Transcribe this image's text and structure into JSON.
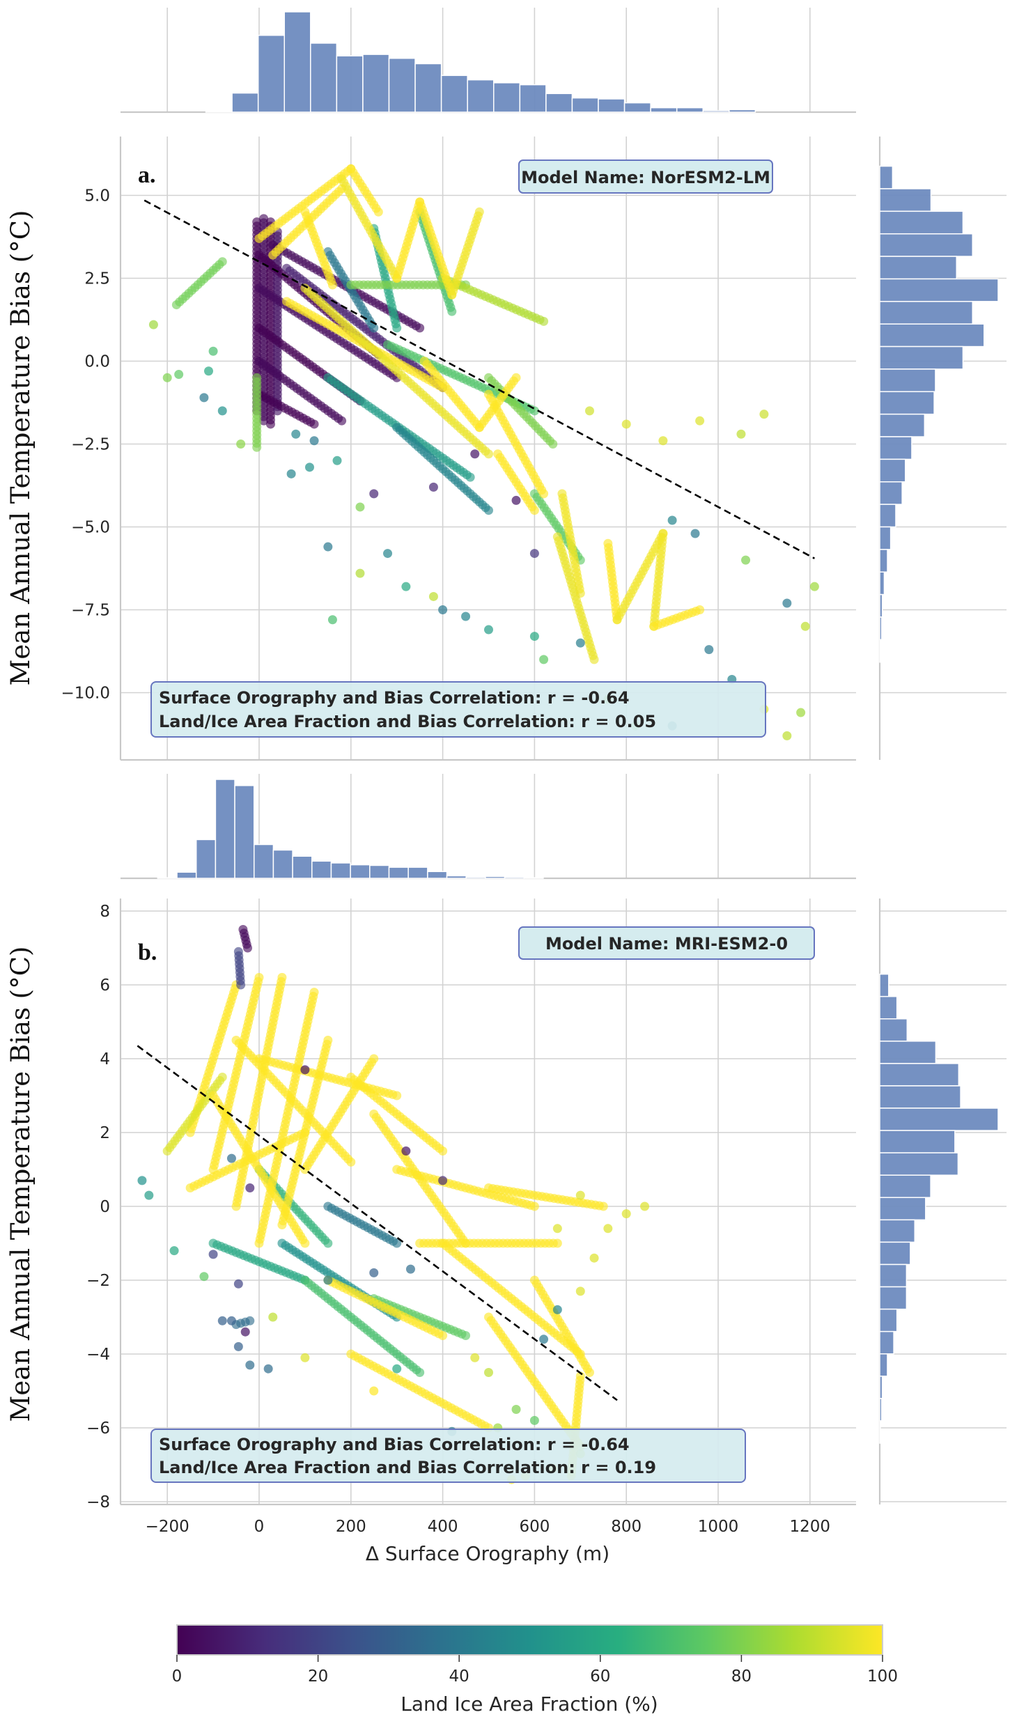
{
  "chart_data": [
    {
      "type": "scatter",
      "panel_label": "a.",
      "model_label": "Model Name: NorESM2-LM",
      "annotation_lines": [
        "Surface Orography and Bias Correlation: r = -0.64",
        "Land/Ice Area Fraction and Bias Correlation: r = 0.05"
      ],
      "ylabel": "Mean Annual Temperature Bias (°C)",
      "xlim": [
        -300,
        1300
      ],
      "ylim": [
        -12.2,
        6.4
      ],
      "x_ticks": [
        -200,
        0,
        200,
        400,
        600,
        800,
        1000,
        1200
      ],
      "y_ticks": [
        5.0,
        2.5,
        0.0,
        -2.5,
        -5.0,
        -7.5,
        -10.0
      ],
      "y_tick_labels": [
        "5.0",
        "2.5",
        "0.0",
        "−2.5",
        "−5.0",
        "−7.5",
        "−10.0"
      ],
      "grid": true,
      "regression_line": [
        [
          -250,
          4.85
        ],
        [
          1210,
          -5.95
        ]
      ],
      "tracks": [
        [
          -5,
          4.2,
          -5,
          -1.5,
          0
        ],
        [
          10,
          4.3,
          10,
          -1.8,
          2
        ],
        [
          25,
          4.2,
          25,
          -1.9,
          0
        ],
        [
          40,
          3.9,
          40,
          -1.5,
          5
        ],
        [
          0,
          3.2,
          260,
          0.2,
          0
        ],
        [
          0,
          2.2,
          300,
          -0.5,
          3
        ],
        [
          0,
          1.0,
          220,
          -1.2,
          0
        ],
        [
          0,
          0,
          180,
          -1.8,
          2
        ],
        [
          0,
          -1,
          120,
          -1.9,
          0
        ],
        [
          30,
          3.5,
          350,
          1,
          2
        ],
        [
          60,
          2.8,
          400,
          -0.8,
          8
        ],
        [
          -5,
          -0.5,
          -5,
          -2.6,
          80
        ],
        [
          -180,
          1.7,
          -80,
          3,
          78
        ],
        [
          150,
          3.3,
          250,
          1,
          40
        ],
        [
          250,
          4,
          300,
          1,
          60
        ],
        [
          350,
          4.5,
          420,
          1.5,
          70
        ],
        [
          200,
          2.3,
          450,
          2.3,
          80
        ],
        [
          400,
          2.5,
          620,
          1.2,
          88
        ],
        [
          280,
          0.5,
          600,
          -1.5,
          72
        ],
        [
          150,
          -0.5,
          460,
          -3.5,
          55
        ],
        [
          300,
          -2,
          500,
          -4.5,
          45
        ],
        [
          500,
          -0.5,
          640,
          -2.5,
          80
        ],
        [
          600,
          -4,
          700,
          -6,
          75
        ],
        [
          0,
          3.7,
          200,
          5.8,
          100
        ],
        [
          200,
          5.8,
          260,
          4.5,
          100
        ],
        [
          30,
          3.2,
          180,
          5.2,
          100
        ],
        [
          100,
          4.5,
          160,
          2.3,
          100
        ],
        [
          180,
          5.5,
          300,
          2.5,
          98
        ],
        [
          300,
          2.5,
          350,
          4.8,
          100
        ],
        [
          350,
          4.8,
          420,
          2,
          100
        ],
        [
          420,
          2,
          480,
          4.5,
          98
        ],
        [
          60,
          1.8,
          400,
          -0.8,
          100
        ],
        [
          100,
          2.2,
          500,
          -2.8,
          97
        ],
        [
          360,
          0,
          480,
          -2,
          100
        ],
        [
          480,
          -2,
          560,
          -0.5,
          100
        ],
        [
          500,
          -1,
          620,
          -4,
          100
        ],
        [
          520,
          -2.8,
          600,
          -4.5,
          100
        ],
        [
          760,
          -5.5,
          780,
          -7.8,
          100
        ],
        [
          780,
          -7.8,
          880,
          -5.2,
          98
        ],
        [
          880,
          -5.2,
          860,
          -8,
          98
        ],
        [
          860,
          -8,
          960,
          -7.5,
          100
        ],
        [
          660,
          -4,
          700,
          -7,
          98
        ],
        [
          650,
          -5.3,
          730,
          -9,
          97
        ]
      ],
      "points": [
        [
          -230,
          1.1,
          85
        ],
        [
          -200,
          -0.5,
          80
        ],
        [
          -175,
          -0.4,
          75
        ],
        [
          -120,
          -1.1,
          40
        ],
        [
          -110,
          -0.3,
          60
        ],
        [
          -80,
          -1.5,
          50
        ],
        [
          -40,
          -2.5,
          82
        ],
        [
          -100,
          0.3,
          70
        ],
        [
          80,
          -2.2,
          45
        ],
        [
          120,
          -2.4,
          40
        ],
        [
          170,
          -3.0,
          55
        ],
        [
          110,
          -3.2,
          50
        ],
        [
          70,
          -3.4,
          45
        ],
        [
          250,
          -4.0,
          10
        ],
        [
          220,
          -4.4,
          80
        ],
        [
          150,
          -5.6,
          40
        ],
        [
          160,
          -7.8,
          70
        ],
        [
          220,
          -6.4,
          88
        ],
        [
          280,
          -5.8,
          45
        ],
        [
          320,
          -6.8,
          60
        ],
        [
          380,
          -7.1,
          90
        ],
        [
          400,
          -7.5,
          40
        ],
        [
          450,
          -7.7,
          45
        ],
        [
          500,
          -8.1,
          55
        ],
        [
          600,
          -8.3,
          60
        ],
        [
          620,
          -9.0,
          75
        ],
        [
          700,
          -8.5,
          42
        ],
        [
          760,
          -10.2,
          85
        ],
        [
          820,
          -11.0,
          80
        ],
        [
          900,
          -11.0,
          45
        ],
        [
          1030,
          -9.6,
          45
        ],
        [
          1100,
          -10.5,
          95
        ],
        [
          1150,
          -11.3,
          90
        ],
        [
          1180,
          -10.6,
          85
        ],
        [
          1190,
          -8.0,
          90
        ],
        [
          1210,
          -6.8,
          85
        ],
        [
          1150,
          -7.3,
          40
        ],
        [
          980,
          -8.7,
          40
        ],
        [
          900,
          -4.8,
          45
        ],
        [
          950,
          -5.2,
          40
        ],
        [
          880,
          -2.4,
          95
        ],
        [
          960,
          -1.8,
          95
        ],
        [
          1050,
          -2.2,
          90
        ],
        [
          1100,
          -1.6,
          92
        ],
        [
          1060,
          -6.0,
          80
        ],
        [
          800,
          -1.9,
          95
        ],
        [
          720,
          -1.5,
          93
        ],
        [
          560,
          -4.2,
          5
        ],
        [
          470,
          -2.8,
          5
        ],
        [
          380,
          -3.8,
          10
        ],
        [
          600,
          -5.8,
          15
        ]
      ],
      "x_marginal_hist": {
        "bin_start": -116,
        "bin_width": 57,
        "heights_relative": [
          2,
          39,
          157,
          205,
          141,
          115,
          118,
          110,
          99,
          75,
          66,
          60,
          56,
          38,
          29,
          27,
          19,
          9,
          9,
          3,
          5
        ]
      },
      "y_marginal_hist": {
        "bin_top": 5.88,
        "bin_width": 0.68,
        "heights_relative": [
          20,
          80,
          130,
          145,
          120,
          185,
          145,
          163,
          130,
          87,
          85,
          70,
          50,
          40,
          35,
          25,
          17,
          12,
          7,
          4,
          3,
          1
        ]
      }
    },
    {
      "type": "scatter",
      "panel_label": "b.",
      "model_label": "Model Name: MRI-ESM2-0",
      "annotation_lines": [
        "Surface Orography and Bias Correlation: r = -0.64",
        "Land/Ice Area Fraction and Bias Correlation: r = 0.19"
      ],
      "ylabel": "Mean Annual Temperature Bias (°C)",
      "xlabel": "Δ Surface Orography (m)",
      "xlim": [
        -300,
        1300
      ],
      "ylim": [
        -8.2,
        8.5
      ],
      "x_ticks": [
        -200,
        0,
        200,
        400,
        600,
        800,
        1000,
        1200
      ],
      "x_tick_labels": [
        "−200",
        "0",
        "200",
        "400",
        "600",
        "800",
        "1000",
        "1200"
      ],
      "y_ticks": [
        8,
        6,
        4,
        2,
        0,
        -2,
        -4,
        -6,
        -8
      ],
      "y_tick_labels": [
        "8",
        "6",
        "4",
        "2",
        "0",
        "−2",
        "−4",
        "−6",
        "−8"
      ],
      "grid": true,
      "regression_line": [
        [
          -265,
          4.35
        ],
        [
          780,
          -5.25
        ]
      ],
      "tracks": [
        [
          -100,
          -1,
          100,
          -2,
          60
        ],
        [
          50,
          -1,
          300,
          -3,
          50
        ],
        [
          100,
          -2,
          350,
          -4.5,
          70
        ],
        [
          -50,
          -3.2,
          -20,
          -3.1,
          35
        ],
        [
          150,
          0,
          300,
          -1,
          40
        ],
        [
          250,
          -2.5,
          450,
          -3.5,
          75
        ],
        [
          0,
          1,
          150,
          -1,
          65
        ],
        [
          -150,
          2,
          -50,
          6,
          100
        ],
        [
          -100,
          1,
          0,
          6.2,
          100
        ],
        [
          -50,
          0,
          50,
          6.2,
          100
        ],
        [
          0,
          -1,
          120,
          5.8,
          100
        ],
        [
          50,
          -0.5,
          150,
          4.5,
          100
        ],
        [
          100,
          1,
          250,
          4,
          100
        ],
        [
          200,
          3.5,
          400,
          1.5,
          100
        ],
        [
          250,
          2.5,
          450,
          -1,
          100
        ],
        [
          300,
          1,
          600,
          0,
          100
        ],
        [
          350,
          -1,
          650,
          -1,
          100
        ],
        [
          400,
          -1,
          700,
          -4,
          100
        ],
        [
          500,
          -3,
          700,
          -6.5,
          100
        ],
        [
          600,
          -2,
          720,
          -4.5,
          100
        ],
        [
          700,
          -4.6,
          680,
          -7.3,
          100
        ],
        [
          -200,
          1.5,
          -80,
          3.5,
          95
        ],
        [
          -150,
          0.5,
          100,
          2,
          100
        ],
        [
          0,
          4,
          300,
          3,
          100
        ],
        [
          -100,
          3,
          100,
          -1,
          100
        ],
        [
          150,
          -2,
          400,
          -3.5,
          100
        ],
        [
          200,
          -4,
          500,
          -6,
          100
        ],
        [
          -50,
          4.5,
          200,
          1.2,
          100
        ],
        [
          500,
          0.5,
          750,
          0,
          100
        ],
        [
          -35,
          7.5,
          -25,
          7.0,
          2
        ],
        [
          -45,
          6.9,
          -40,
          6.0,
          20
        ]
      ],
      "points": [
        [
          -255,
          0.7,
          50
        ],
        [
          -240,
          0.3,
          55
        ],
        [
          -185,
          -1.2,
          60
        ],
        [
          -120,
          -1.9,
          75
        ],
        [
          -45,
          -2.1,
          20
        ],
        [
          -30,
          -3.4,
          5
        ],
        [
          -45,
          -3.8,
          30
        ],
        [
          -20,
          -4.3,
          35
        ],
        [
          20,
          -4.4,
          35
        ],
        [
          420,
          -6.1,
          40
        ],
        [
          520,
          -6.0,
          85
        ],
        [
          560,
          -5.5,
          80
        ],
        [
          600,
          -5.8,
          75
        ],
        [
          700,
          -6.7,
          92
        ],
        [
          640,
          -7.1,
          100
        ],
        [
          580,
          -7.3,
          100
        ],
        [
          550,
          -7.4,
          100
        ],
        [
          620,
          -3.6,
          40
        ],
        [
          650,
          -2.8,
          45
        ],
        [
          700,
          -2.3,
          95
        ],
        [
          730,
          -1.4,
          95
        ],
        [
          760,
          -0.6,
          95
        ],
        [
          800,
          -0.2,
          95
        ],
        [
          840,
          0.0,
          95
        ],
        [
          700,
          0.3,
          95
        ],
        [
          650,
          -0.6,
          95
        ],
        [
          400,
          0.7,
          12
        ],
        [
          320,
          1.5,
          5
        ],
        [
          100,
          3.7,
          5
        ],
        [
          -20,
          0.5,
          10
        ],
        [
          -60,
          1.3,
          35
        ],
        [
          -100,
          -1.3,
          20
        ],
        [
          -80,
          -3.1,
          30
        ],
        [
          -60,
          -3.1,
          30
        ],
        [
          150,
          -2.0,
          40
        ],
        [
          250,
          -1.8,
          30
        ],
        [
          330,
          -1.7,
          35
        ],
        [
          470,
          -4.1,
          95
        ],
        [
          500,
          -4.5,
          90
        ],
        [
          300,
          -4.4,
          60
        ],
        [
          250,
          -5.0,
          100
        ],
        [
          100,
          -4.1,
          95
        ],
        [
          30,
          -3.0,
          90
        ]
      ],
      "x_marginal_hist": {
        "bin_start": -221,
        "bin_width": 42,
        "heights_relative": [
          1,
          10,
          63,
          161,
          151,
          55,
          46,
          36,
          28,
          25,
          22,
          21,
          18,
          18,
          11,
          4,
          2,
          3,
          2,
          1
        ]
      },
      "y_marginal_hist": {
        "bin_top": 6.29,
        "bin_width": 0.605,
        "heights_relative": [
          14,
          27,
          43,
          88,
          124,
          127,
          186,
          118,
          123,
          80,
          72,
          55,
          48,
          42,
          42,
          27,
          22,
          12,
          4,
          3,
          1
        ]
      }
    }
  ],
  "colorbar": {
    "label": "Land Ice Area Fraction (%)",
    "colormap": "viridis",
    "range": [
      0,
      100
    ],
    "ticks": [
      "0",
      "20",
      "40",
      "60",
      "80",
      "100"
    ]
  },
  "colors": {
    "histogram": "#6e8bbf",
    "annotation_fill": "#d5ecef",
    "annotation_border": "#6675bf",
    "regression_line": "#000000"
  }
}
